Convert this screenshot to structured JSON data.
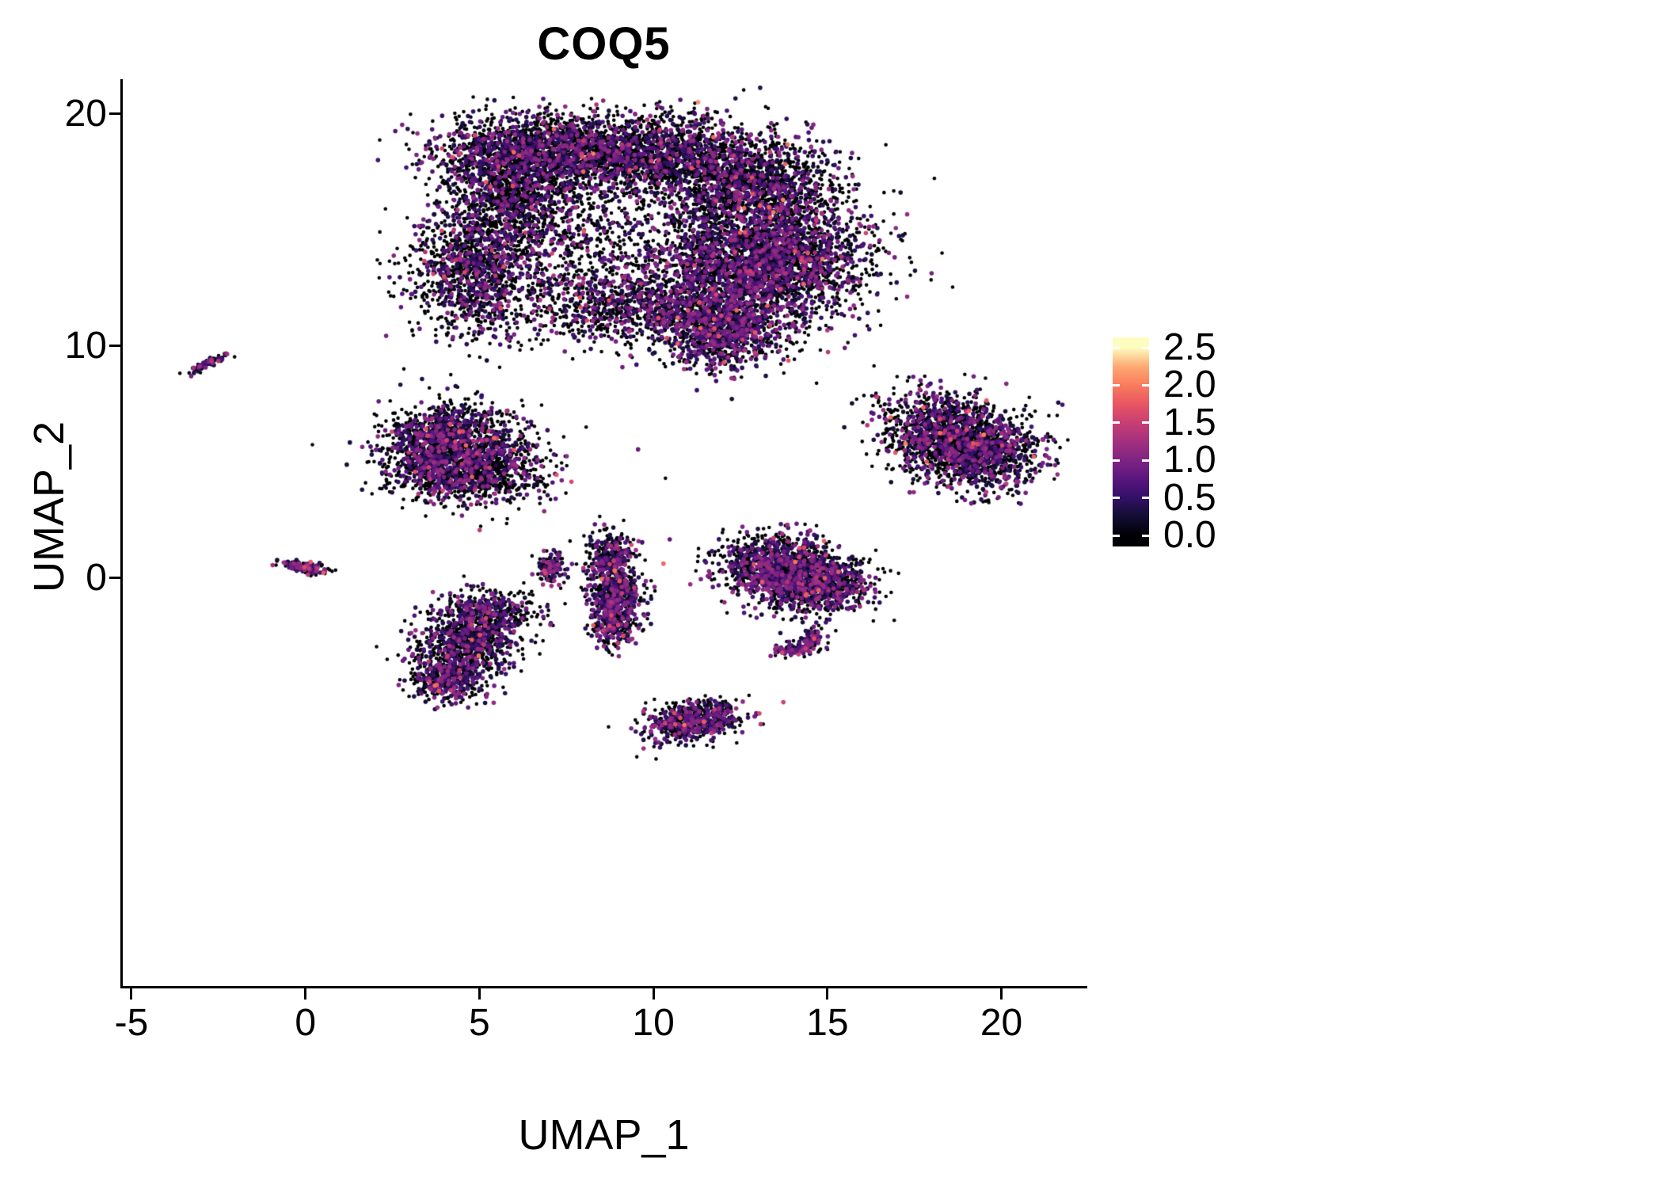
{
  "chart_data": {
    "type": "scatter",
    "title": "COQ5",
    "xlabel": "UMAP_1",
    "ylabel": "UMAP_2",
    "xlim": [
      -5.25,
      22.4
    ],
    "ylim": [
      -17.6,
      21.5
    ],
    "x_ticks": [
      -5,
      0,
      5,
      10,
      15,
      20
    ],
    "x_tick_labels": [
      "-5",
      "0",
      "5",
      "10",
      "15",
      "20"
    ],
    "y_ticks": [
      0,
      10,
      20
    ],
    "y_tick_labels": [
      "0",
      "10",
      "20"
    ],
    "grid": false,
    "legend": {
      "position": "right",
      "min": 0,
      "max": 2.5,
      "ticks": [
        0.0,
        0.5,
        1.0,
        1.5,
        2.0,
        2.5
      ],
      "tick_labels": [
        "0.0",
        "0.5",
        "1.0",
        "1.5",
        "2.0",
        "2.5"
      ]
    },
    "colormap": {
      "name": "magma",
      "stops": [
        [
          0.0,
          "#000004"
        ],
        [
          0.1,
          "#120d31"
        ],
        [
          0.2,
          "#331067"
        ],
        [
          0.3,
          "#59157e"
        ],
        [
          0.4,
          "#7e2482"
        ],
        [
          0.5,
          "#a3307e"
        ],
        [
          0.6,
          "#c83e73"
        ],
        [
          0.7,
          "#e95562"
        ],
        [
          0.8,
          "#f97c5d"
        ],
        [
          0.9,
          "#fea973"
        ],
        [
          1.0,
          "#fcfdbf"
        ]
      ]
    },
    "point_radius_px": 2.3,
    "expressed_point_radius_px": 2.8,
    "seed": 42,
    "clusters": [
      {
        "name": "main-upper",
        "p_zero": 0.68,
        "blobs": [
          {
            "cx": 7.0,
            "cy": 18.5,
            "sdx": 1.6,
            "sdy": 0.75,
            "n": 1700
          },
          {
            "cx": 10.3,
            "cy": 18.2,
            "sdx": 1.6,
            "sdy": 0.85,
            "n": 1500
          },
          {
            "cx": 12.9,
            "cy": 16.8,
            "sdx": 1.2,
            "sdy": 1.0,
            "n": 1300
          },
          {
            "cx": 5.9,
            "cy": 16.6,
            "sdx": 0.9,
            "sdy": 1.1,
            "n": 1000
          },
          {
            "cx": 4.9,
            "cy": 13.2,
            "sdx": 0.9,
            "sdy": 1.4,
            "n": 1200
          },
          {
            "cx": 8.2,
            "cy": 14.5,
            "sdx": 1.9,
            "sdy": 1.6,
            "n": 800
          },
          {
            "cx": 13.2,
            "cy": 13.6,
            "sdx": 1.5,
            "sdy": 1.3,
            "n": 3000,
            "p_zero": 0.6
          },
          {
            "cx": 9.4,
            "cy": 11.7,
            "sdx": 1.4,
            "sdy": 0.8,
            "n": 850
          },
          {
            "cx": 11.9,
            "cy": 10.7,
            "sdx": 0.9,
            "sdy": 0.85,
            "n": 1000,
            "p_zero": 0.52
          }
        ]
      },
      {
        "name": "left-streak",
        "p_zero": 0.5,
        "blobs": [
          {
            "cx": -2.85,
            "cy": 9.2,
            "sdx": 0.32,
            "sdy": 0.07,
            "angle": 38,
            "n": 90
          }
        ]
      },
      {
        "name": "mid-left",
        "p_zero": 0.66,
        "blobs": [
          {
            "cx": 4.2,
            "cy": 5.9,
            "sdx": 1.0,
            "sdy": 0.8,
            "n": 1200
          },
          {
            "cx": 4.7,
            "cy": 4.6,
            "sdx": 1.1,
            "sdy": 0.7,
            "n": 1150
          }
        ]
      },
      {
        "name": "origin-dot",
        "p_zero": 0.5,
        "blobs": [
          {
            "cx": 0.05,
            "cy": 0.45,
            "sdx": 0.33,
            "sdy": 0.11,
            "angle": -12,
            "n": 150
          }
        ]
      },
      {
        "name": "lower-left",
        "p_zero": 0.62,
        "blobs": [
          {
            "cx": 5.3,
            "cy": -1.5,
            "sdx": 0.75,
            "sdy": 0.5,
            "n": 420
          },
          {
            "cx": 4.6,
            "cy": -2.9,
            "sdx": 0.75,
            "sdy": 0.75,
            "n": 750
          },
          {
            "cx": 4.05,
            "cy": -4.4,
            "sdx": 0.5,
            "sdy": 0.45,
            "n": 420
          }
        ]
      },
      {
        "name": "small-arc",
        "p_zero": 0.55,
        "blobs": [
          {
            "cx": 7.1,
            "cy": 0.35,
            "sdx": 0.2,
            "sdy": 0.33,
            "n": 130
          }
        ]
      },
      {
        "name": "vertical-mid",
        "p_zero": 0.55,
        "blobs": [
          {
            "cx": 8.75,
            "cy": 0.8,
            "sdx": 0.32,
            "sdy": 0.55,
            "n": 330
          },
          {
            "cx": 8.95,
            "cy": -0.7,
            "sdx": 0.38,
            "sdy": 0.6,
            "n": 420
          },
          {
            "cx": 8.8,
            "cy": -2.0,
            "sdx": 0.3,
            "sdy": 0.45,
            "n": 280
          }
        ]
      },
      {
        "name": "right-center",
        "p_zero": 0.62,
        "blobs": [
          {
            "cx": 13.5,
            "cy": 0.45,
            "sdx": 0.85,
            "sdy": 0.7,
            "n": 1000
          },
          {
            "cx": 14.7,
            "cy": -0.3,
            "sdx": 0.75,
            "sdy": 0.65,
            "n": 900
          }
        ]
      },
      {
        "name": "small-hook",
        "p_zero": 0.55,
        "blobs": [
          {
            "cx": 14.05,
            "cy": -3.05,
            "sdx": 0.33,
            "sdy": 0.14,
            "angle": 8,
            "n": 100
          },
          {
            "cx": 14.55,
            "cy": -2.55,
            "sdx": 0.12,
            "sdy": 0.28,
            "n": 70
          }
        ]
      },
      {
        "name": "bottom",
        "p_zero": 0.55,
        "blobs": [
          {
            "cx": 11.15,
            "cy": -6.15,
            "sdx": 0.7,
            "sdy": 0.42,
            "angle": 14,
            "n": 650
          }
        ]
      },
      {
        "name": "right",
        "p_zero": 0.62,
        "blobs": [
          {
            "cx": 18.3,
            "cy": 6.3,
            "sdx": 0.9,
            "sdy": 0.85,
            "n": 1100
          },
          {
            "cx": 19.5,
            "cy": 5.4,
            "sdx": 0.85,
            "sdy": 0.8,
            "n": 1000
          }
        ]
      }
    ]
  }
}
